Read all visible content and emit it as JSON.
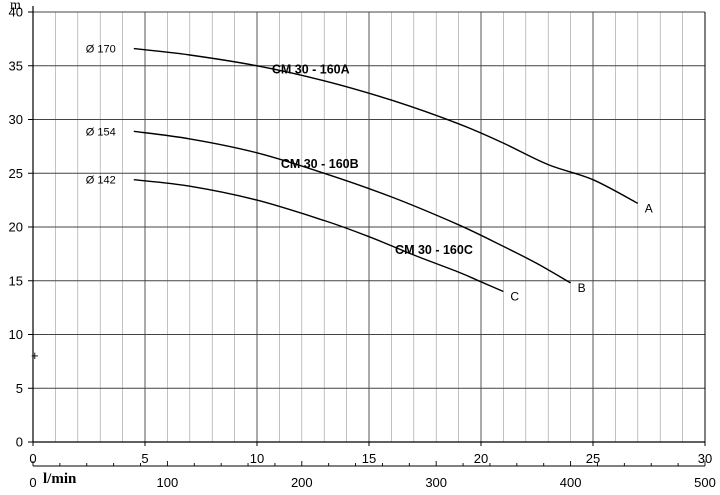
{
  "chart_data": {
    "type": "line",
    "title": "",
    "ylabel": "m",
    "xlabel_secondary": "l/min",
    "ylim": [
      0,
      40
    ],
    "yticks": [
      0,
      5,
      10,
      15,
      20,
      25,
      30,
      35,
      40
    ],
    "xlim": [
      0,
      30
    ],
    "xticks": [
      0,
      5,
      10,
      15,
      20,
      25,
      30
    ],
    "xticks_secondary_lmin": [
      0,
      100,
      200,
      300,
      400,
      500
    ],
    "grid": true,
    "series": [
      {
        "name": "CM 30 - 160A",
        "diameter_label": "Ø 170",
        "end_label": "A",
        "x": [
          4.5,
          7,
          10,
          13,
          16,
          19,
          21,
          23,
          25,
          27
        ],
        "y": [
          36.6,
          36.0,
          35.0,
          33.6,
          31.8,
          29.6,
          27.8,
          25.8,
          24.4,
          22.2
        ]
      },
      {
        "name": "CM 30 - 160B",
        "diameter_label": "Ø 154",
        "end_label": "B",
        "x": [
          4.5,
          7,
          10,
          13,
          16,
          19,
          21,
          22.5,
          24
        ],
        "y": [
          28.9,
          28.2,
          26.9,
          25.0,
          22.8,
          20.2,
          18.2,
          16.6,
          14.8
        ]
      },
      {
        "name": "CM 30 - 160C",
        "diameter_label": "Ø 142",
        "end_label": "C",
        "x": [
          4.5,
          7,
          10,
          13,
          15,
          17,
          19,
          20,
          21
        ],
        "y": [
          24.4,
          23.8,
          22.5,
          20.6,
          19.1,
          17.4,
          15.8,
          14.9,
          14.0
        ]
      }
    ]
  }
}
